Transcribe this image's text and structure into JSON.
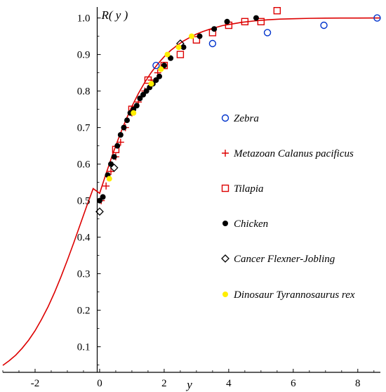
{
  "chart_data": {
    "type": "scatter",
    "title": "",
    "xlabel": "y",
    "ylabel": "R( y )",
    "xlim": [
      -3,
      8.7
    ],
    "ylim": [
      0.03,
      1.03
    ],
    "xticks": [
      -2,
      0,
      2,
      4,
      6,
      8
    ],
    "xtick_labels": [
      "-2",
      "0",
      "2",
      "4",
      "6",
      "8"
    ],
    "yticks": [
      0.1,
      0.2,
      0.3,
      0.4,
      0.5,
      0.6,
      0.7,
      0.8,
      0.9,
      1.0
    ],
    "ytick_labels": [
      "0.1",
      "0.2",
      "0.3",
      "0.4",
      "0.5",
      "0.6",
      "0.7",
      "0.8",
      "0.9",
      "1.0"
    ],
    "grid": false,
    "legend_position": "right",
    "curve": {
      "name": "",
      "color": "#dd0000",
      "x": [
        -3.0,
        -2.8,
        -2.6,
        -2.4,
        -2.2,
        -2.0,
        -1.8,
        -1.6,
        -1.4,
        -1.2,
        -1.0,
        -0.8,
        -0.6,
        -0.4,
        -0.2,
        0.0,
        0.2,
        0.4,
        0.6,
        0.8,
        1.0,
        1.2,
        1.4,
        1.6,
        1.8,
        2.0,
        2.2,
        2.4,
        2.6,
        2.8,
        3.0,
        3.2,
        3.4,
        3.6,
        3.8,
        4.0,
        4.4,
        4.8,
        5.2,
        5.6,
        6.0,
        6.5,
        7.0,
        7.5,
        8.0,
        8.7
      ],
      "y": [
        0.049,
        0.062,
        0.077,
        0.096,
        0.118,
        0.144,
        0.175,
        0.209,
        0.248,
        0.291,
        0.337,
        0.385,
        0.435,
        0.485,
        0.533,
        0.52,
        0.574,
        0.626,
        0.674,
        0.718,
        0.758,
        0.793,
        0.824,
        0.851,
        0.874,
        0.894,
        0.911,
        0.925,
        0.937,
        0.947,
        0.956,
        0.963,
        0.969,
        0.974,
        0.979,
        0.982,
        0.988,
        0.992,
        0.995,
        0.997,
        0.998,
        0.999,
        0.9995,
        0.9998,
        0.9999,
        1.0
      ]
    },
    "series": [
      {
        "name": "Zebra",
        "marker": "circle-open",
        "color": "#0033cc",
        "points": [
          [
            1.75,
            0.87
          ],
          [
            3.5,
            0.93
          ],
          [
            5.2,
            0.96
          ],
          [
            6.95,
            0.98
          ],
          [
            8.6,
            1.0
          ]
        ]
      },
      {
        "name": "Metazoan Calanus pacificus",
        "marker": "cross",
        "color": "#dd0000",
        "points": [
          [
            0.05,
            0.5
          ],
          [
            0.2,
            0.54
          ],
          [
            0.35,
            0.58
          ],
          [
            0.5,
            0.62
          ],
          [
            0.65,
            0.66
          ],
          [
            0.8,
            0.7
          ],
          [
            1.0,
            0.74
          ],
          [
            1.2,
            0.77
          ],
          [
            1.4,
            0.8
          ],
          [
            1.6,
            0.83
          ],
          [
            1.8,
            0.85
          ]
        ]
      },
      {
        "name": "Tilapia",
        "marker": "square-open",
        "color": "#dd0000",
        "points": [
          [
            0.5,
            0.64
          ],
          [
            1.0,
            0.75
          ],
          [
            1.5,
            0.83
          ],
          [
            2.0,
            0.87
          ],
          [
            2.5,
            0.9
          ],
          [
            3.0,
            0.94
          ],
          [
            3.5,
            0.96
          ],
          [
            4.0,
            0.98
          ],
          [
            4.5,
            0.99
          ],
          [
            5.0,
            0.99
          ],
          [
            5.5,
            1.02
          ]
        ]
      },
      {
        "name": "Chicken",
        "marker": "circle-filled",
        "color": "#000000",
        "points": [
          [
            0.0,
            0.5
          ],
          [
            0.1,
            0.51
          ],
          [
            0.25,
            0.57
          ],
          [
            0.35,
            0.6
          ],
          [
            0.45,
            0.62
          ],
          [
            0.55,
            0.65
          ],
          [
            0.65,
            0.68
          ],
          [
            0.75,
            0.7
          ],
          [
            0.85,
            0.72
          ],
          [
            0.95,
            0.74
          ],
          [
            1.05,
            0.75
          ],
          [
            1.15,
            0.76
          ],
          [
            1.25,
            0.78
          ],
          [
            1.35,
            0.79
          ],
          [
            1.45,
            0.8
          ],
          [
            1.55,
            0.81
          ],
          [
            1.65,
            0.82
          ],
          [
            1.75,
            0.83
          ],
          [
            1.85,
            0.84
          ],
          [
            2.0,
            0.87
          ],
          [
            2.2,
            0.89
          ],
          [
            2.6,
            0.92
          ],
          [
            3.1,
            0.95
          ],
          [
            3.55,
            0.97
          ],
          [
            3.95,
            0.99
          ],
          [
            4.85,
            1.0
          ]
        ]
      },
      {
        "name": "Cancer Flexner-Jobling",
        "marker": "diamond-open",
        "color": "#000000",
        "points": [
          [
            0.0,
            0.47
          ],
          [
            0.45,
            0.59
          ],
          [
            2.5,
            0.93
          ]
        ]
      },
      {
        "name": "Dinosaur Tyrannosaurus rex",
        "marker": "circle-filled",
        "color": "#ffee00",
        "points": [
          [
            0.3,
            0.56
          ],
          [
            1.05,
            0.74
          ],
          [
            1.6,
            0.82
          ],
          [
            1.9,
            0.86
          ],
          [
            2.1,
            0.9
          ],
          [
            2.45,
            0.92
          ],
          [
            2.85,
            0.95
          ]
        ]
      }
    ]
  }
}
